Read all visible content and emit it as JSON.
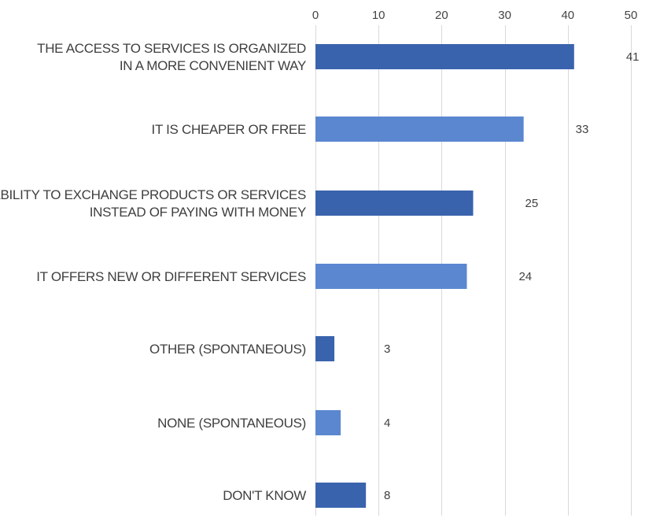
{
  "chart_data": {
    "type": "bar",
    "orientation": "horizontal",
    "title": "",
    "xlabel": "",
    "ylabel": "",
    "categories": [
      [
        "THE ACCESS TO SERVICES IS ORGANIZED",
        "IN A MORE CONVENIENT WAY"
      ],
      [
        "IT IS CHEAPER OR FREE"
      ],
      [
        "THE ABILITY TO EXCHANGE PRODUCTS OR SERVICES",
        "INSTEAD OF PAYING WITH MONEY"
      ],
      [
        "IT OFFERS NEW OR DIFFERENT SERVICES"
      ],
      [
        "OTHER (SPONTANEOUS)"
      ],
      [
        "NONE (SPONTANEOUS)"
      ],
      [
        "DON'T KNOW"
      ]
    ],
    "values": [
      41,
      33,
      25,
      24,
      3,
      4,
      8
    ],
    "value_labels": [
      "41",
      "33",
      "25",
      "24",
      "3",
      "4",
      "8"
    ],
    "xlim": [
      0,
      50
    ],
    "xticks": [
      0,
      10,
      20,
      30,
      40,
      50
    ],
    "xtick_labels": [
      "0",
      "10",
      "20",
      "30",
      "40",
      "50"
    ],
    "axis_position": "top",
    "grid": true,
    "legend": "none",
    "bar_colors": [
      "#3a63ad",
      "#5b87d1",
      "#3a63ad",
      "#5b87d1",
      "#3a63ad",
      "#5b87d1",
      "#3a63ad"
    ]
  }
}
